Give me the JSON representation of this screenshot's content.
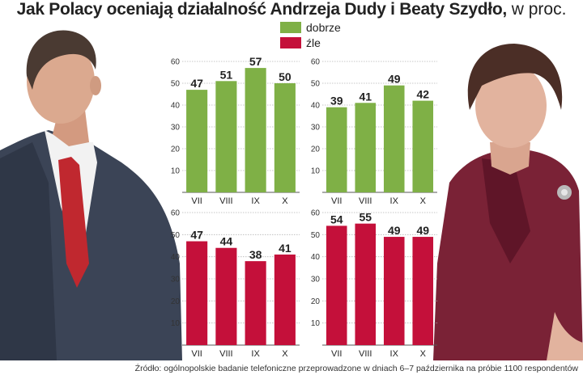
{
  "title": {
    "main": "Jak Polacy oceniają działalność Andrzeja Dudy i Beaty Szydło,",
    "suffix": " w proc."
  },
  "legend": [
    {
      "label": "dobrze",
      "color": "#7fb046"
    },
    {
      "label": "źle",
      "color": "#c4103a"
    }
  ],
  "source": "Źródło: ogólnopolskie badanie telefoniczne przeprowadzone w dniach 6–7 października na próbie 1100 respondentów",
  "chart_data": [
    {
      "type": "bar",
      "person": "Andrzej Duda",
      "series_label": "dobrze",
      "categories": [
        "VII",
        "VIII",
        "IX",
        "X"
      ],
      "values": [
        47,
        51,
        57,
        50
      ],
      "ylim": [
        0,
        60
      ],
      "yticks": [
        10,
        20,
        30,
        40,
        50,
        60
      ],
      "color": "#7fb046"
    },
    {
      "type": "bar",
      "person": "Beata Szydło",
      "series_label": "dobrze",
      "categories": [
        "VII",
        "VIII",
        "IX",
        "X"
      ],
      "values": [
        39,
        41,
        49,
        42
      ],
      "ylim": [
        0,
        60
      ],
      "yticks": [
        10,
        20,
        30,
        40,
        50,
        60
      ],
      "color": "#7fb046"
    },
    {
      "type": "bar",
      "person": "Andrzej Duda",
      "series_label": "źle",
      "categories": [
        "VII",
        "VIII",
        "IX",
        "X"
      ],
      "values": [
        47,
        44,
        38,
        41
      ],
      "ylim": [
        0,
        60
      ],
      "yticks": [
        10,
        20,
        30,
        40,
        50,
        60
      ],
      "color": "#c4103a"
    },
    {
      "type": "bar",
      "person": "Beata Szydło",
      "series_label": "źle",
      "categories": [
        "VII",
        "VIII",
        "IX",
        "X"
      ],
      "values": [
        54,
        55,
        49,
        49
      ],
      "ylim": [
        0,
        60
      ],
      "yticks": [
        10,
        20,
        30,
        40,
        50,
        60
      ],
      "color": "#c4103a"
    }
  ]
}
